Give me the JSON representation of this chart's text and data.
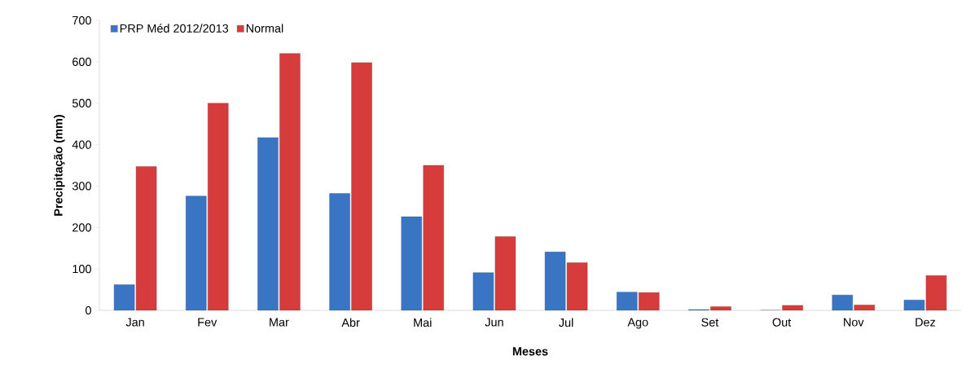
{
  "chart_data": {
    "type": "bar",
    "xlabel": "Meses",
    "ylabel": "Precipitação (mm)",
    "categories": [
      "Jan",
      "Fev",
      "Mar",
      "Abr",
      "Mai",
      "Jun",
      "Jul",
      "Ago",
      "Set",
      "Out",
      "Nov",
      "Dez"
    ],
    "series": [
      {
        "name": "PRP Méd 2012/2013",
        "color": "#3a75c4",
        "values": [
          62,
          276,
          417,
          282,
          226,
          91,
          141,
          44,
          2,
          0,
          37,
          25
        ]
      },
      {
        "name": "Normal",
        "color": "#d63c3c",
        "values": [
          347,
          500,
          620,
          598,
          350,
          178,
          115,
          43,
          9,
          12,
          13,
          84
        ]
      }
    ],
    "ylim": [
      0,
      700
    ],
    "yticks": [
      0,
      100,
      200,
      300,
      400,
      500,
      600,
      700
    ],
    "grid": false,
    "legend": "top left"
  }
}
